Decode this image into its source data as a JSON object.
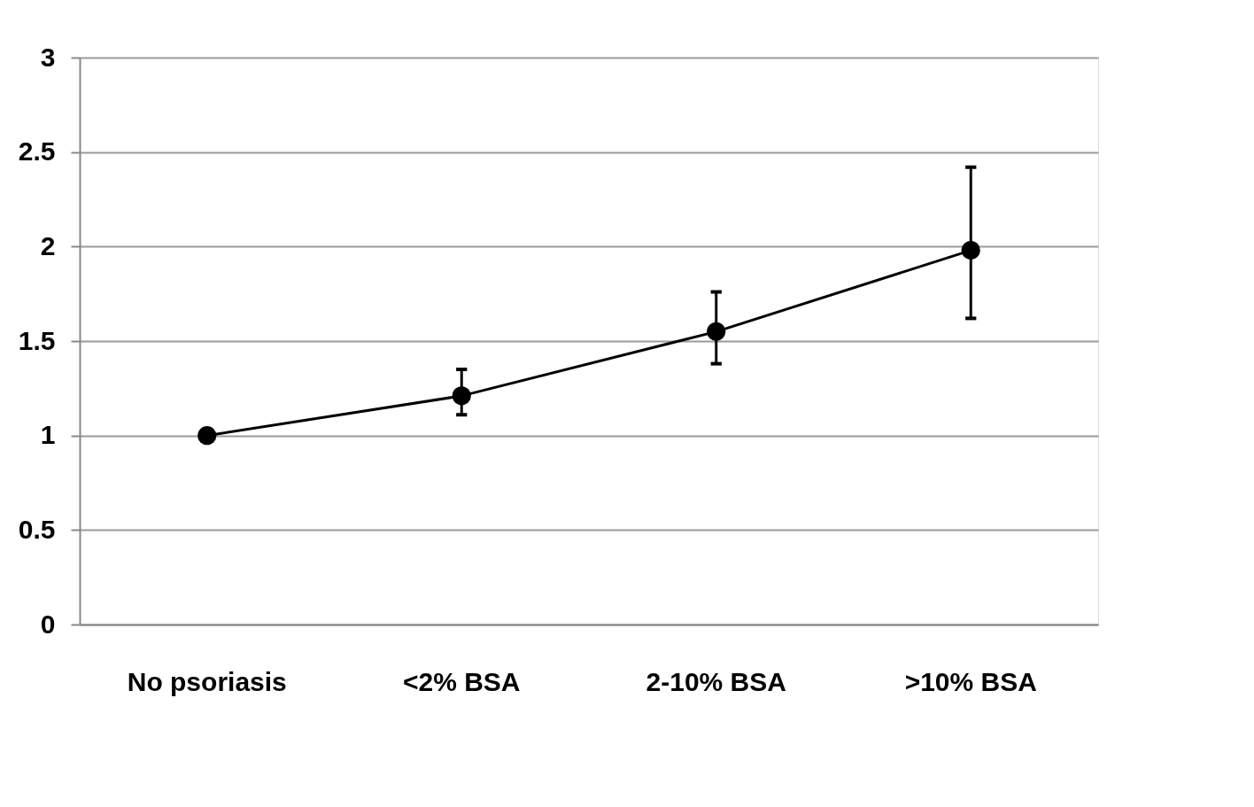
{
  "chart_data": {
    "type": "line",
    "categories": [
      "No psoriasis",
      "<2% BSA",
      "2-10% BSA",
      ">10% BSA"
    ],
    "series": [
      {
        "color": "#000000",
        "values": [
          1.0,
          1.21,
          1.55,
          1.98
        ],
        "errors": [
          null,
          [
            1.11,
            1.35
          ],
          [
            1.38,
            1.76
          ],
          [
            1.62,
            2.42
          ]
        ]
      }
    ],
    "ylim": [
      0,
      3
    ],
    "yticks": [
      0,
      0.5,
      1,
      1.5,
      2,
      2.5,
      3
    ],
    "grid": "y",
    "marker": "circle",
    "line_style": "solid"
  }
}
